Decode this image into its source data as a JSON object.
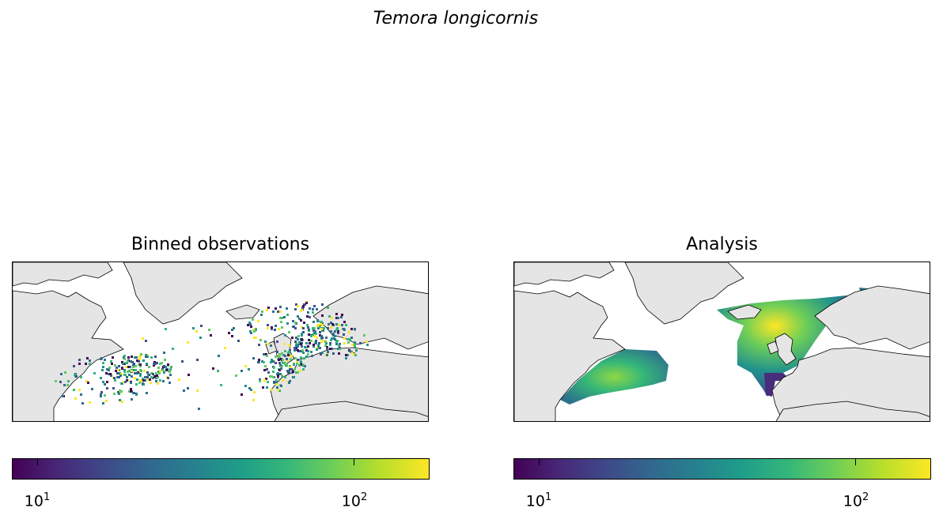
{
  "figure": {
    "title": "Temora longicornis"
  },
  "panels": [
    {
      "title": "Binned observations",
      "colorbar": {
        "scale": "log",
        "colormap": "viridis",
        "range": [
          8,
          170
        ],
        "ticks": [
          {
            "value": 10,
            "base": "10",
            "exp": "1"
          },
          {
            "value": 100,
            "base": "10",
            "exp": "2"
          }
        ]
      }
    },
    {
      "title": "Analysis",
      "colorbar": {
        "scale": "log",
        "colormap": "viridis",
        "range": [
          8,
          170
        ],
        "ticks": [
          {
            "value": 10,
            "base": "10",
            "exp": "1"
          },
          {
            "value": 100,
            "base": "10",
            "exp": "2"
          }
        ]
      }
    }
  ],
  "colors": {
    "land": "#e5e5e5",
    "coast": "#000000",
    "ocean": "#ffffff"
  }
}
